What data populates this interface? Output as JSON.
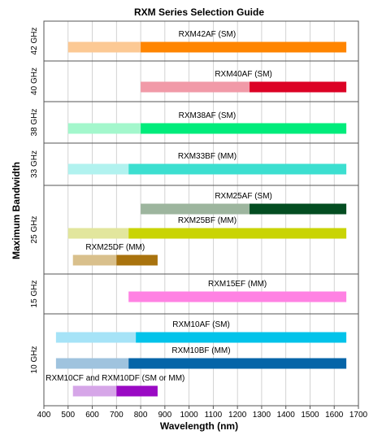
{
  "chart_data": {
    "type": "bar",
    "orientation": "horizontal-range",
    "title": "RXM Series Selection Guide",
    "xlabel": "Wavelength (nm)",
    "ylabel": "Maximum Bandwidth",
    "xlim": [
      400,
      1700
    ],
    "xticks": [
      400,
      500,
      600,
      700,
      800,
      900,
      1000,
      1100,
      1200,
      1300,
      1400,
      1500,
      1600,
      1700
    ],
    "grid": true,
    "panels": [
      {
        "label": "42 GHz",
        "series": [
          {
            "name": "RXM42AF (SM)",
            "light_range": [
              500,
              800
            ],
            "dark_range": [
              800,
              1650
            ],
            "light_color": "#fcc994",
            "dark_color": "#ff8500"
          }
        ]
      },
      {
        "label": "40 GHz",
        "series": [
          {
            "name": "RXM40AF (SM)",
            "light_range": [
              800,
              1250
            ],
            "dark_range": [
              1250,
              1650
            ],
            "light_color": "#f19aa8",
            "dark_color": "#dc0225"
          }
        ]
      },
      {
        "label": "38 GHz",
        "series": [
          {
            "name": "RXM38AF (SM)",
            "light_range": [
              500,
              800
            ],
            "dark_range": [
              800,
              1650
            ],
            "light_color": "#a3f7cc",
            "dark_color": "#00ec7b"
          }
        ]
      },
      {
        "label": "33 GHz",
        "series": [
          {
            "name": "RXM33BF (MM)",
            "light_range": [
              500,
              750
            ],
            "dark_range": [
              750,
              1650
            ],
            "light_color": "#b1f2ef",
            "dark_color": "#3cdfd0"
          }
        ]
      },
      {
        "label": "25 GHz",
        "series": [
          {
            "name": "RXM25AF (SM)",
            "light_range": [
              800,
              1250
            ],
            "dark_range": [
              1250,
              1650
            ],
            "light_color": "#9db59e",
            "dark_color": "#034d21"
          },
          {
            "name": "RXM25BF (MM)",
            "light_range": [
              500,
              750
            ],
            "dark_range": [
              750,
              1650
            ],
            "light_color": "#e2e69d",
            "dark_color": "#c9d404"
          },
          {
            "name": "RXM25DF (MM)",
            "light_range": [
              520,
              700
            ],
            "dark_range": [
              700,
              870
            ],
            "light_color": "#d9c08c",
            "dark_color": "#a9730e"
          }
        ]
      },
      {
        "label": "15 GHz",
        "series": [
          {
            "name": "RXM15EF (MM)",
            "light_range": null,
            "dark_range": [
              750,
              1650
            ],
            "light_color": null,
            "dark_color": "#ff82e3"
          }
        ]
      },
      {
        "label": "10 GHz",
        "series": [
          {
            "name": "RXM10AF (SM)",
            "light_range": [
              450,
              780
            ],
            "dark_range": [
              780,
              1650
            ],
            "light_color": "#a6e3f7",
            "dark_color": "#02c3ea"
          },
          {
            "name": "RXM10BF (MM)",
            "light_range": [
              450,
              750
            ],
            "dark_range": [
              750,
              1650
            ],
            "light_color": "#9fc3de",
            "dark_color": "#0565a8"
          },
          {
            "name": "RXM10CF and RXM10DF (SM or MM)",
            "light_range": [
              520,
              700
            ],
            "dark_range": [
              700,
              870
            ],
            "light_color": "#d6a6e8",
            "dark_color": "#9a0ac4"
          }
        ]
      }
    ]
  }
}
